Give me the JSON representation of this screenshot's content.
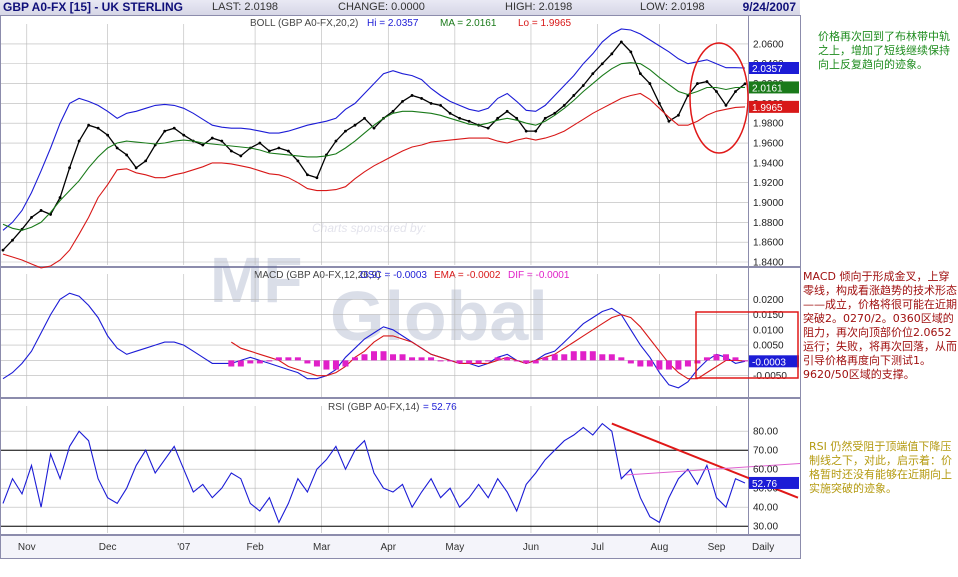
{
  "header": {
    "title": "GBP A0-FX [15] - UK STERLING",
    "last": "LAST: 2.0198",
    "change": "CHANGE: 0.0000",
    "high": "HIGH: 2.0198",
    "low": "LOW: 2.0198",
    "date": "9/24/2007"
  },
  "watermark": {
    "line1": "Charts sponsored by:",
    "brand_mf": "MF",
    "brand_global": "Global"
  },
  "x_axis": {
    "labels": [
      "Nov",
      "Dec",
      "'07",
      "Feb",
      "Mar",
      "Apr",
      "May",
      "Jun",
      "Jul",
      "Aug",
      "Sep"
    ],
    "periodicity": "Daily"
  },
  "notes": {
    "note1": "价格再次回到了布林带中轨之上，增加了短线继续保持向上反复趋向的迹象。",
    "note2": "MACD 倾向于形成金叉，上穿零线，构成看涨趋势的技术形态——成立，价格将很可能在近期突破2。0270/2。0360区域的阻力，再次向顶部价位2.0652运行；失败，将再次回落，从而引导价格再度向下测试1。9620/50区域的支撑。",
    "note3": "RSI 仍然受阻于顶端值下降压制线之下，对此，启示着：价格暂时还没有能够在近期向上实施突破的迹象。"
  },
  "colors": {
    "upper_band": "#1c1cd6",
    "ma": "#1a7a1a",
    "lower_band": "#d81818",
    "price": "#000000",
    "macd_osc": "#1c1cd6",
    "macd_ema": "#d81818",
    "macd_dif": "#e020c8",
    "rsi": "#1c1cd6",
    "rsi_trend": "#e01818",
    "rsi_pink": "#e060d0",
    "annotation": "#e01818",
    "grid": "#b8b8b8"
  },
  "chart_data": [
    {
      "type": "line",
      "panel": "price",
      "title": "BOLL (GBP A0-FX,20,2)",
      "header_values": {
        "hi": "Hi = 2.0357",
        "ma": "MA = 2.0161",
        "lo": "Lo = 1.9965"
      },
      "ylim": [
        1.84,
        2.07
      ],
      "yticks": [
        "1.8400",
        "1.8600",
        "1.8800",
        "1.9000",
        "1.9200",
        "1.9400",
        "1.9600",
        "1.9800",
        "2.0000",
        "2.0200",
        "2.0400",
        "2.0600"
      ],
      "badges": {
        "upper": "2.0357",
        "ma": "2.0161",
        "lower": "1.9965"
      },
      "series": [
        {
          "key": "price",
          "values": [
            1.852,
            1.862,
            1.873,
            1.885,
            1.892,
            1.888,
            1.905,
            1.935,
            1.962,
            1.978,
            1.975,
            1.968,
            1.955,
            1.948,
            1.935,
            1.942,
            1.958,
            1.972,
            1.975,
            1.968,
            1.962,
            1.958,
            1.965,
            1.962,
            1.952,
            1.947,
            1.955,
            1.96,
            1.952,
            1.955,
            1.952,
            1.942,
            1.928,
            1.925,
            1.948,
            1.962,
            1.972,
            1.978,
            1.985,
            1.975,
            1.985,
            1.992,
            2.002,
            2.008,
            2.005,
            2.0,
            1.998,
            1.99,
            1.985,
            1.982,
            1.978,
            1.975,
            1.985,
            1.992,
            1.985,
            1.972,
            1.972,
            1.985,
            1.99,
            1.998,
            2.008,
            2.018,
            2.03,
            2.04,
            2.05,
            2.062,
            2.052,
            2.03,
            2.02,
            2.0,
            1.982,
            1.988,
            2.008,
            2.02,
            2.022,
            2.012,
            1.998,
            2.012,
            2.0198
          ]
        },
        {
          "key": "upper",
          "values": [
            1.872,
            1.88,
            1.892,
            1.91,
            1.932,
            1.955,
            1.98,
            2.0,
            2.005,
            2.002,
            1.998,
            1.992,
            1.985,
            1.99,
            1.992,
            1.995,
            1.998,
            1.999,
            1.998,
            1.995,
            1.99,
            1.984,
            1.978,
            1.976,
            1.975,
            1.975,
            1.974,
            1.972,
            1.97,
            1.97,
            1.972,
            1.975,
            1.978,
            1.98,
            1.982,
            1.985,
            1.994,
            2.0,
            2.01,
            2.02,
            2.03,
            2.033,
            2.03,
            2.028,
            2.024,
            2.015,
            2.008,
            2.002,
            1.998,
            1.994,
            1.992,
            1.995,
            2.005,
            2.01,
            2.002,
            1.993,
            1.992,
            1.998,
            2.008,
            2.018,
            2.028,
            2.04,
            2.05,
            2.062,
            2.07,
            2.075,
            2.074,
            2.07,
            2.064,
            2.058,
            2.052,
            2.045,
            2.04,
            2.042,
            2.044,
            2.04,
            2.036,
            2.036,
            2.0357
          ]
        },
        {
          "key": "ma",
          "values": [
            1.878,
            1.874,
            1.872,
            1.875,
            1.88,
            1.89,
            1.902,
            1.912,
            1.922,
            1.935,
            1.946,
            1.955,
            1.96,
            1.962,
            1.961,
            1.96,
            1.959,
            1.96,
            1.962,
            1.963,
            1.962,
            1.96,
            1.959,
            1.958,
            1.957,
            1.956,
            1.955,
            1.953,
            1.95,
            1.949,
            1.948,
            1.947,
            1.946,
            1.946,
            1.947,
            1.949,
            1.955,
            1.962,
            1.97,
            1.978,
            1.985,
            1.99,
            1.992,
            1.992,
            1.991,
            1.99,
            1.988,
            1.985,
            1.982,
            1.979,
            1.978,
            1.98,
            1.983,
            1.985,
            1.983,
            1.98,
            1.978,
            1.982,
            1.988,
            1.995,
            2.003,
            2.012,
            2.02,
            2.028,
            2.035,
            2.04,
            2.041,
            2.04,
            2.034,
            2.026,
            2.019,
            2.012,
            2.009,
            2.012,
            2.016,
            2.016,
            2.014,
            2.016,
            2.0161
          ]
        },
        {
          "key": "lower",
          "values": [
            1.848,
            1.845,
            1.842,
            1.838,
            1.834,
            1.836,
            1.842,
            1.852,
            1.868,
            1.885,
            1.905,
            1.918,
            1.933,
            1.934,
            1.93,
            1.928,
            1.925,
            1.925,
            1.928,
            1.93,
            1.933,
            1.936,
            1.94,
            1.94,
            1.939,
            1.937,
            1.935,
            1.932,
            1.929,
            1.928,
            1.925,
            1.92,
            1.914,
            1.912,
            1.912,
            1.913,
            1.916,
            1.924,
            1.931,
            1.937,
            1.942,
            1.947,
            1.952,
            1.956,
            1.958,
            1.961,
            1.962,
            1.963,
            1.964,
            1.965,
            1.965,
            1.965,
            1.962,
            1.96,
            1.963,
            1.965,
            1.963,
            1.965,
            1.968,
            1.972,
            1.978,
            1.984,
            1.99,
            1.995,
            2.0,
            2.005,
            2.008,
            2.01,
            2.004,
            1.995,
            1.986,
            1.978,
            1.978,
            1.982,
            1.988,
            1.992,
            1.994,
            1.996,
            1.9965
          ]
        }
      ]
    },
    {
      "type": "line",
      "panel": "macd",
      "title": "MACD (GBP A0-FX,12,26,9)",
      "header_values": {
        "osc": "OSC = -0.0003",
        "ema": "EMA = -0.0002",
        "dif": "DIF = -0.0001"
      },
      "ylim": [
        -0.011,
        0.025
      ],
      "yticks": [
        "-0.0050",
        "0.0000",
        "0.0050",
        "0.0100",
        "0.0150",
        "0.0200"
      ],
      "badge": "-0.0003",
      "series": [
        {
          "key": "osc",
          "values": [
            -0.006,
            -0.004,
            -0.001,
            0.003,
            0.009,
            0.015,
            0.02,
            0.022,
            0.021,
            0.018,
            0.014,
            0.008,
            0.004,
            0.002,
            0.003,
            0.004,
            0.005,
            0.006,
            0.006,
            0.005,
            0.003,
            0.001,
            -0.001,
            -0.001,
            -0.001,
            0.0,
            0.001,
            0.0,
            -0.001,
            -0.002,
            -0.003,
            -0.004,
            -0.006,
            -0.006,
            -0.005,
            -0.003,
            0.001,
            0.004,
            0.007,
            0.009,
            0.011,
            0.01,
            0.008,
            0.006,
            0.004,
            0.002,
            0.001,
            0.0,
            -0.001,
            -0.001,
            -0.002,
            -0.001,
            0.001,
            0.002,
            0.0,
            -0.001,
            0.0,
            0.002,
            0.003,
            0.006,
            0.009,
            0.012,
            0.014,
            0.016,
            0.017,
            0.015,
            0.01,
            0.005,
            0.001,
            -0.004,
            -0.008,
            -0.009,
            -0.007,
            -0.003,
            0.0,
            0.002,
            0.001,
            -0.001,
            -0.0003
          ]
        },
        {
          "key": "ema",
          "start": 24,
          "values": [
            0.006,
            0.004,
            0.003,
            0.002,
            0.001,
            0.0,
            -0.002,
            -0.003,
            -0.004,
            -0.005,
            -0.005,
            -0.004,
            -0.002,
            0.001,
            0.003,
            0.006,
            0.008,
            0.008,
            0.007,
            0.006,
            0.004,
            0.002,
            0.001,
            0.0,
            -0.001,
            -0.001,
            -0.001,
            -0.001,
            0.0,
            0.001,
            0.0,
            -0.001,
            0.0,
            0.001,
            0.002,
            0.004,
            0.006,
            0.008,
            0.01,
            0.012,
            0.014,
            0.015,
            0.014,
            0.011,
            0.007,
            0.003,
            -0.001,
            -0.004,
            -0.006,
            -0.006,
            -0.004,
            -0.002,
            0.0,
            0.0,
            -0.0002
          ]
        },
        {
          "key": "dif",
          "start": 24,
          "values": [
            -0.002,
            -0.002,
            -0.001,
            -0.001,
            0.0,
            0.001,
            0.001,
            0.001,
            -0.001,
            -0.002,
            -0.003,
            -0.003,
            -0.002,
            0.001,
            0.002,
            0.003,
            0.003,
            0.002,
            0.002,
            0.001,
            0.001,
            0.001,
            0.0,
            0.0,
            -0.001,
            -0.001,
            -0.001,
            0.0,
            0.001,
            0.001,
            0.0,
            -0.001,
            -0.001,
            0.001,
            0.002,
            0.002,
            0.003,
            0.003,
            0.003,
            0.002,
            0.002,
            0.001,
            -0.001,
            -0.002,
            -0.002,
            -0.003,
            -0.003,
            -0.003,
            -0.002,
            -0.001,
            0.001,
            0.002,
            0.002,
            0.001,
            -0.0001
          ]
        }
      ]
    },
    {
      "type": "line",
      "panel": "rsi",
      "title": "RSI (GBP A0-FX,14)",
      "header_values": {
        "rsi": "= 52.76"
      },
      "ylim": [
        28,
        88
      ],
      "yticks": [
        "30.00",
        "40.00",
        "50.00",
        "60.00",
        "70.00",
        "80.00"
      ],
      "reference_lines": [
        30,
        70
      ],
      "badge": "52.76",
      "series": [
        {
          "key": "rsi",
          "values": [
            42,
            55,
            47,
            62,
            40,
            68,
            55,
            72,
            80,
            75,
            55,
            45,
            42,
            50,
            62,
            70,
            58,
            65,
            72,
            60,
            48,
            52,
            45,
            50,
            58,
            55,
            42,
            38,
            45,
            32,
            42,
            55,
            48,
            60,
            65,
            72,
            60,
            70,
            75,
            58,
            50,
            48,
            52,
            40,
            48,
            55,
            45,
            50,
            40,
            45,
            52,
            45,
            55,
            48,
            38,
            52,
            58,
            65,
            70,
            75,
            78,
            82,
            78,
            84,
            80,
            55,
            60,
            45,
            35,
            32,
            45,
            55,
            60,
            52,
            62,
            45,
            40,
            55,
            52.76
          ]
        }
      ]
    }
  ]
}
